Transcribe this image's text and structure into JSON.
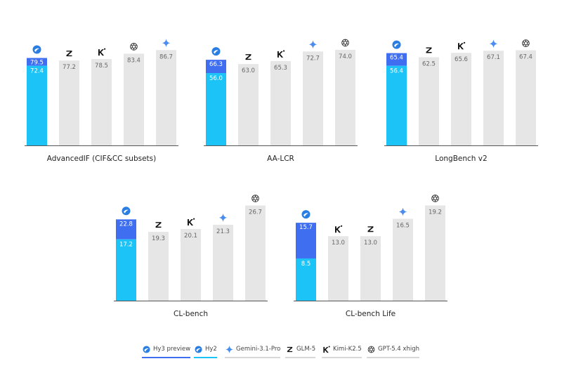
{
  "colors": {
    "hy3_preview": "#3f6ff0",
    "hy2": "#1cc3f7",
    "other_bar": "#e6e6e6",
    "axis": "#555555",
    "value_text_light": "#ffffff",
    "value_text_dark": "#666666",
    "gemini": "#4a8cf0",
    "legend_line_other": "#d7d7d7"
  },
  "legend": [
    {
      "key": "hy3_preview",
      "label": "Hy3 preview",
      "icon": "hunyuan-icon"
    },
    {
      "key": "hy2",
      "label": "Hy2",
      "icon": "hunyuan-icon"
    },
    {
      "key": "gemini",
      "label": "Gemini-3.1-Pro",
      "icon": "gemini-star-icon"
    },
    {
      "key": "glm",
      "label": "GLM-5",
      "icon": "zhipu-z-icon"
    },
    {
      "key": "kimi",
      "label": "Kimi-K2.5",
      "icon": "kimi-k-icon"
    },
    {
      "key": "gpt",
      "label": "GPT-5.4 xhigh",
      "icon": "openai-knot-icon"
    }
  ],
  "chart_data": [
    {
      "type": "bar",
      "xlabel": "AdvancedIF (CIF&CC subsets)",
      "bars": [
        {
          "model": "hunyuan",
          "hy3_preview": 79.5,
          "hy2": 72.4
        },
        {
          "model": "glm",
          "value": 77.2
        },
        {
          "model": "kimi",
          "value": 78.5
        },
        {
          "model": "gpt",
          "value": 83.4
        },
        {
          "model": "gemini",
          "value": 86.7
        }
      ]
    },
    {
      "type": "bar",
      "xlabel": "AA-LCR",
      "bars": [
        {
          "model": "hunyuan",
          "hy3_preview": 66.3,
          "hy2": 56.0
        },
        {
          "model": "glm",
          "value": 63.0
        },
        {
          "model": "kimi",
          "value": 65.3
        },
        {
          "model": "gemini",
          "value": 72.7
        },
        {
          "model": "gpt",
          "value": 74.0
        }
      ]
    },
    {
      "type": "bar",
      "xlabel": "LongBench v2",
      "bars": [
        {
          "model": "hunyuan",
          "hy3_preview": 65.4,
          "hy2": 56.4
        },
        {
          "model": "glm",
          "value": 62.5
        },
        {
          "model": "kimi",
          "value": 65.6
        },
        {
          "model": "gemini",
          "value": 67.1
        },
        {
          "model": "gpt",
          "value": 67.4
        }
      ]
    },
    {
      "type": "bar",
      "xlabel": "CL-bench",
      "bars": [
        {
          "model": "hunyuan",
          "hy3_preview": 22.8,
          "hy2": 17.2
        },
        {
          "model": "glm",
          "value": 19.3
        },
        {
          "model": "kimi",
          "value": 20.1
        },
        {
          "model": "gemini",
          "value": 21.3
        },
        {
          "model": "gpt",
          "value": 26.7
        }
      ]
    },
    {
      "type": "bar",
      "xlabel": "CL-bench Life",
      "bars": [
        {
          "model": "hunyuan",
          "hy3_preview": 15.7,
          "hy2": 8.5
        },
        {
          "model": "kimi",
          "value": 13.0
        },
        {
          "model": "glm",
          "value": 13.0
        },
        {
          "model": "gemini",
          "value": 16.5
        },
        {
          "model": "gpt",
          "value": 19.2
        }
      ]
    }
  ]
}
